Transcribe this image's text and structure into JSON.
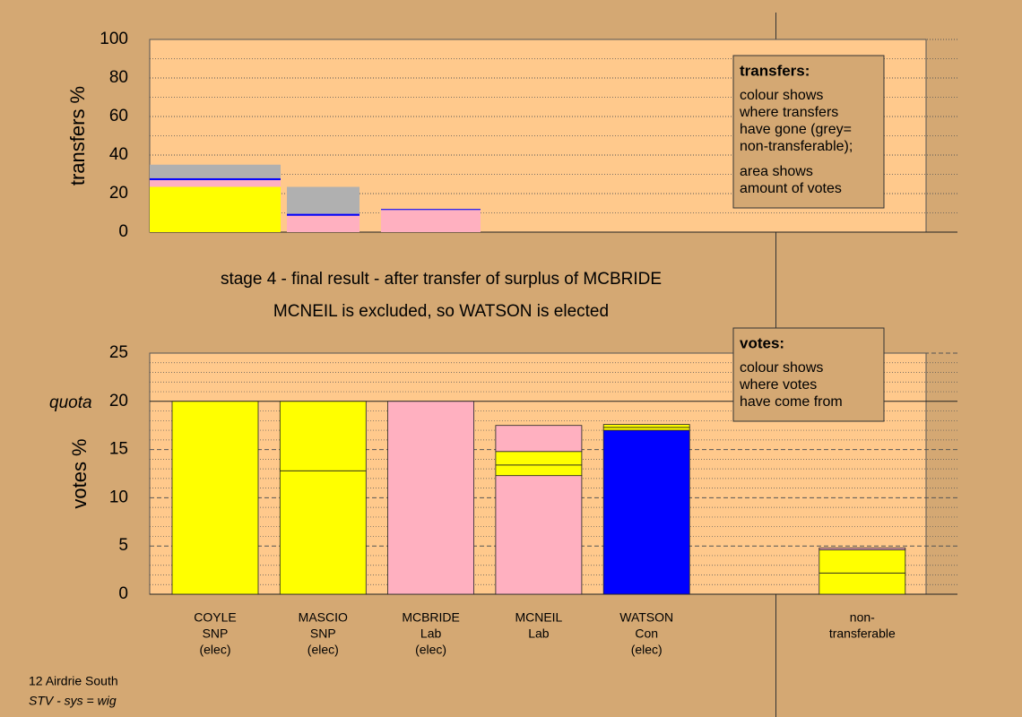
{
  "chart_data": [
    {
      "type": "stacked-bar",
      "ylabel": "transfers %",
      "ylim": [
        0,
        100
      ],
      "yticks": [
        0,
        20,
        40,
        60,
        80,
        100
      ],
      "minor_ticks": [
        10,
        30,
        50,
        70,
        90
      ],
      "tick_line_style": "dotted",
      "segment_outline": false,
      "bars": [
        {
          "segments": [
            {
              "color": "#ffff00",
              "value": 23.5
            },
            {
              "color": "#ffb0c0",
              "value": 3.5
            },
            {
              "color": "#0000ff",
              "value": 1
            },
            {
              "color": "#b0b0b0",
              "value": 7
            }
          ]
        },
        {
          "segments": [
            {
              "color": "#ffb0c0",
              "value": 8.5
            },
            {
              "color": "#0000ff",
              "value": 1
            },
            {
              "color": "#b0b0b0",
              "value": 14
            }
          ]
        },
        {
          "segments": [
            {
              "color": "#ffb0c0",
              "value": 11.5
            },
            {
              "color": "#0000ff",
              "value": 0.5
            }
          ]
        }
      ],
      "legend": {
        "title": "transfers:",
        "paragraphs": [
          [
            "colour shows",
            "where transfers",
            "have gone (grey=",
            "non-transferable);"
          ],
          [
            "area shows",
            "amount of votes"
          ]
        ]
      }
    },
    {
      "type": "stacked-bar",
      "ylabel": "votes %",
      "ylim": [
        0,
        25
      ],
      "yticks": [
        0,
        5,
        10,
        15,
        20,
        25
      ],
      "minor_ticks": [
        1,
        2,
        3,
        4,
        6,
        7,
        8,
        9,
        11,
        12,
        13,
        14,
        16,
        17,
        18,
        19,
        21,
        22,
        23,
        24
      ],
      "tick_line_style": "dashed",
      "segment_outline": true,
      "quota": 20,
      "quota_label": "quota",
      "categories": [
        [
          "COYLE",
          "SNP",
          "(elec)"
        ],
        [
          "MASCIO",
          "SNP",
          "(elec)"
        ],
        [
          "MCBRIDE",
          "Lab",
          "(elec)"
        ],
        [
          "MCNEIL",
          "Lab"
        ],
        [
          "WATSON",
          "Con",
          "(elec)"
        ],
        null,
        [
          "non-",
          "transferable"
        ]
      ],
      "bars": [
        {
          "segments": [
            {
              "color": "#ffff00",
              "value": 20
            }
          ]
        },
        {
          "segments": [
            {
              "color": "#ffff00",
              "value": 12.8
            },
            {
              "color": "#ffff00",
              "value": 7.2
            }
          ]
        },
        {
          "segments": [
            {
              "color": "#ffb0c0",
              "value": 20
            }
          ]
        },
        {
          "segments": [
            {
              "color": "#ffb0c0",
              "value": 12.3
            },
            {
              "color": "#ffff00",
              "value": 1.1
            },
            {
              "color": "#ffff00",
              "value": 1.4
            },
            {
              "color": "#ffb0c0",
              "value": 2.7
            }
          ]
        },
        {
          "segments": [
            {
              "color": "#0000ff",
              "value": 17
            },
            {
              "color": "#ffff00",
              "value": 0.3
            },
            {
              "color": "#ffff00",
              "value": 0.3
            }
          ]
        },
        {
          "segments": []
        },
        {
          "segments": [
            {
              "color": "#ffff00",
              "value": 2.2
            },
            {
              "color": "#ffff00",
              "value": 2.4
            },
            {
              "color": "#ffb0c0",
              "value": 0.2
            }
          ]
        }
      ],
      "legend": {
        "title": "votes:",
        "paragraphs": [
          [
            "colour shows",
            "where votes",
            "have come from"
          ]
        ]
      }
    }
  ],
  "captions": [
    "stage 4 - final result - after transfer of surplus of MCBRIDE",
    "MCNEIL is excluded, so WATSON is elected"
  ],
  "footer": {
    "lines": [
      "12 Airdrie South",
      "STV - sys = wig"
    ]
  }
}
